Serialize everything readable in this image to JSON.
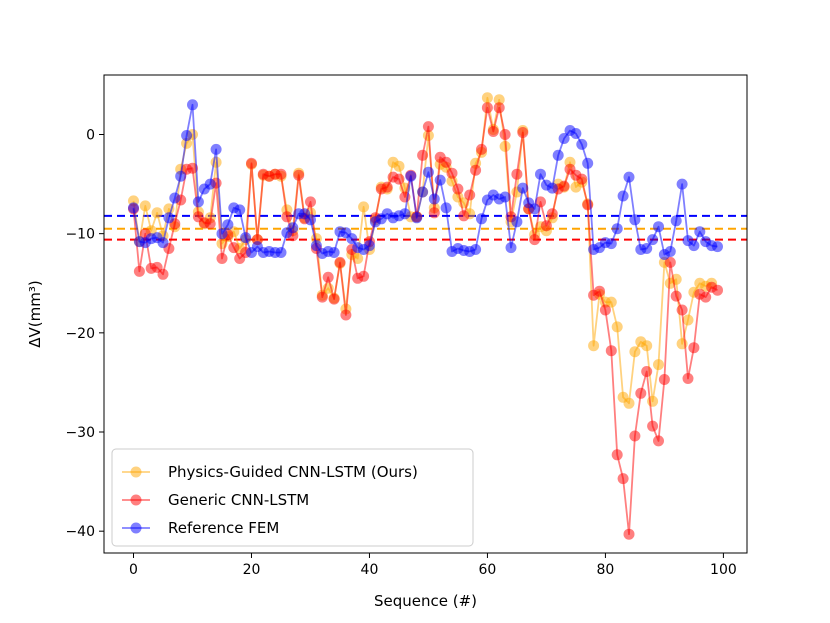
{
  "chart_data": {
    "type": "line",
    "title": "",
    "xlabel": "Sequence (#)",
    "ylabel": "ΔV(mm³)",
    "xlim": [
      -5,
      104
    ],
    "ylim": [
      -42.2,
      6.0
    ],
    "xticks": [
      0,
      20,
      40,
      60,
      80,
      100
    ],
    "yticks": [
      0,
      -10,
      -20,
      -30,
      -40
    ],
    "xtick_labels": [
      "0",
      "20",
      "40",
      "60",
      "80",
      "100"
    ],
    "ytick_labels": [
      "0",
      "−10",
      "−20",
      "−30",
      "−40"
    ],
    "legend_position": "lower-left",
    "series": [
      {
        "name": "Physics-Guided CNN-LSTM (Ours)",
        "color": "#FFA500",
        "mean_line": -9.5,
        "values": [
          -6.7,
          -10.8,
          -7.2,
          -9.7,
          -7.9,
          -10.2,
          -7.5,
          -9.3,
          -3.5,
          -0.9,
          0.0,
          -7.8,
          -9.0,
          -8.4,
          -2.8,
          -11.0,
          -10.3,
          -9.8,
          -11.5,
          -10.6,
          -3.0,
          -10.6,
          -4.1,
          -4.2,
          -4.0,
          -4.2,
          -7.6,
          -9.7,
          -3.9,
          -8.4,
          -7.9,
          -10.5,
          -16.2,
          -15.5,
          -16.5,
          -13.0,
          -17.6,
          -12.1,
          -12.5,
          -7.3,
          -11.6,
          -8.6,
          -5.3,
          -5.5,
          -2.8,
          -3.2,
          -5.4,
          -8.3,
          -8.3,
          -5.8,
          -0.1,
          -7.4,
          -3.0,
          -3.3,
          -4.7,
          -6.3,
          -6.9,
          -8.0,
          -2.9,
          -1.8,
          3.7,
          0.5,
          3.5,
          -1.2,
          -8.8,
          -5.8,
          0.4,
          -7.5,
          -10.1,
          -9.3,
          -9.7,
          -8.4,
          -5.0,
          -5.3,
          -2.8,
          -5.3,
          -4.8,
          -7.0,
          -21.3,
          -16.1,
          -16.9,
          -16.9,
          -19.4,
          -26.5,
          -27.1,
          -21.9,
          -20.9,
          -21.3,
          -26.9,
          -23.2,
          -12.9,
          -15.0,
          -14.6,
          -21.1,
          -18.7,
          -15.9,
          -15.0,
          -15.3,
          -15.0
        ],
        "x": [
          0,
          1,
          2,
          3,
          4,
          5,
          6,
          7,
          8,
          9,
          10,
          11,
          12,
          13,
          14,
          15,
          16,
          17,
          18,
          19,
          20,
          21,
          22,
          23,
          24,
          25,
          26,
          27,
          28,
          29,
          30,
          31,
          32,
          33,
          34,
          35,
          36,
          37,
          38,
          39,
          40,
          41,
          42,
          43,
          44,
          45,
          46,
          47,
          48,
          49,
          50,
          51,
          52,
          53,
          54,
          55,
          56,
          57,
          58,
          59,
          60,
          61,
          62,
          63,
          64,
          65,
          66,
          67,
          68,
          69,
          70,
          71,
          72,
          73,
          74,
          75,
          76,
          77,
          78,
          79,
          80,
          81,
          82,
          83,
          84,
          85,
          86,
          87,
          88,
          89,
          90,
          91,
          92,
          93,
          94,
          95,
          96,
          97,
          98
        ]
      },
      {
        "name": "Generic CNN-LSTM",
        "color": "#FF0000",
        "mean_line": -10.6,
        "values": [
          -7.5,
          -13.8,
          -10.0,
          -13.5,
          -13.4,
          -14.1,
          -11.5,
          -9.0,
          -6.6,
          -3.5,
          -3.4,
          -8.3,
          -8.9,
          -9.0,
          -4.9,
          -12.5,
          -10.1,
          -11.4,
          -12.5,
          -11.9,
          -2.9,
          -10.6,
          -4.0,
          -4.2,
          -4.0,
          -4.0,
          -8.3,
          -10.2,
          -4.1,
          -8.5,
          -6.8,
          -11.5,
          -16.4,
          -14.4,
          -16.6,
          -12.9,
          -18.2,
          -11.6,
          -14.5,
          -14.3,
          -10.8,
          -8.4,
          -5.5,
          -5.3,
          -4.3,
          -4.5,
          -6.3,
          -4.1,
          -8.3,
          -2.1,
          0.8,
          -7.9,
          -2.3,
          -2.8,
          -3.9,
          -5.5,
          -8.2,
          -6.1,
          -3.6,
          -1.5,
          2.7,
          0.3,
          2.7,
          0.0,
          -8.3,
          -4.0,
          0.2,
          -7.5,
          -10.6,
          -6.8,
          -9.2,
          -8.0,
          -5.5,
          -5.2,
          -3.5,
          -4.1,
          -4.5,
          -7.1,
          -16.2,
          -15.8,
          -17.7,
          -21.8,
          -32.3,
          -34.7,
          -40.3,
          -30.4,
          -26.1,
          -23.9,
          -29.4,
          -30.9,
          -24.7,
          -12.9,
          -16.3,
          -17.7,
          -24.6,
          -21.5,
          -16.1,
          -16.4,
          -15.4,
          -15.7
        ],
        "x": [
          0,
          1,
          2,
          3,
          4,
          5,
          6,
          7,
          8,
          9,
          10,
          11,
          12,
          13,
          14,
          15,
          16,
          17,
          18,
          19,
          20,
          21,
          22,
          23,
          24,
          25,
          26,
          27,
          28,
          29,
          30,
          31,
          32,
          33,
          34,
          35,
          36,
          37,
          38,
          39,
          40,
          41,
          42,
          43,
          44,
          45,
          46,
          47,
          48,
          49,
          50,
          51,
          52,
          53,
          54,
          55,
          56,
          57,
          58,
          59,
          60,
          61,
          62,
          63,
          64,
          65,
          66,
          67,
          68,
          69,
          70,
          71,
          72,
          73,
          74,
          75,
          76,
          77,
          78,
          79,
          80,
          81,
          82,
          83,
          84,
          85,
          86,
          87,
          88,
          89,
          90,
          91,
          92,
          93,
          94,
          95,
          96,
          97,
          98,
          99
        ]
      },
      {
        "name": "Reference FEM",
        "color": "#0000FF",
        "mean_line": -8.2,
        "values": [
          -7.4,
          -10.8,
          -10.9,
          -10.5,
          -10.4,
          -10.9,
          -8.4,
          -6.4,
          -4.2,
          -0.1,
          3.0,
          -6.8,
          -5.5,
          -5.0,
          -1.5,
          -10.0,
          -9.1,
          -7.4,
          -7.6,
          -10.4,
          -11.9,
          -11.3,
          -11.9,
          -11.8,
          -11.9,
          -11.9,
          -9.9,
          -9.4,
          -8.0,
          -8.0,
          -8.6,
          -11.2,
          -12.0,
          -11.8,
          -11.9,
          -9.8,
          -9.9,
          -10.5,
          -11.4,
          -11.6,
          -11.2,
          -8.8,
          -8.5,
          -8.0,
          -8.4,
          -8.2,
          -8.0,
          -4.2,
          -8.4,
          -5.8,
          -3.8,
          -6.5,
          -4.6,
          -7.4,
          -11.8,
          -11.5,
          -11.7,
          -11.8,
          -11.6,
          -8.5,
          -6.6,
          -6.1,
          -6.5,
          -6.3,
          -11.4,
          -8.8,
          -5.4,
          -6.9,
          -7.5,
          -4.0,
          -5.1,
          -5.4,
          -2.1,
          -0.4,
          0.4,
          0.1,
          -1.0,
          -2.9,
          -11.6,
          -11.4,
          -10.9,
          -11.0,
          -9.5,
          -6.2,
          -4.3,
          -8.6,
          -11.6,
          -11.5,
          -10.6,
          -9.3,
          -12.1,
          -11.8,
          -8.7,
          -5.0,
          -10.7,
          -11.2,
          -9.8,
          -10.8,
          -11.2,
          -11.3
        ],
        "x": [
          0,
          1,
          2,
          3,
          4,
          5,
          6,
          7,
          8,
          9,
          10,
          11,
          12,
          13,
          14,
          15,
          16,
          17,
          18,
          19,
          20,
          21,
          22,
          23,
          24,
          25,
          26,
          27,
          28,
          29,
          30,
          31,
          32,
          33,
          34,
          35,
          36,
          37,
          38,
          39,
          40,
          41,
          42,
          43,
          44,
          45,
          46,
          47,
          48,
          49,
          50,
          51,
          52,
          53,
          54,
          55,
          56,
          57,
          58,
          59,
          60,
          61,
          62,
          63,
          64,
          65,
          66,
          67,
          68,
          69,
          70,
          71,
          72,
          73,
          74,
          75,
          76,
          77,
          78,
          79,
          80,
          81,
          82,
          83,
          84,
          85,
          86,
          87,
          88,
          89,
          90,
          91,
          92,
          93,
          94,
          95,
          96,
          97,
          98,
          99
        ]
      }
    ]
  }
}
